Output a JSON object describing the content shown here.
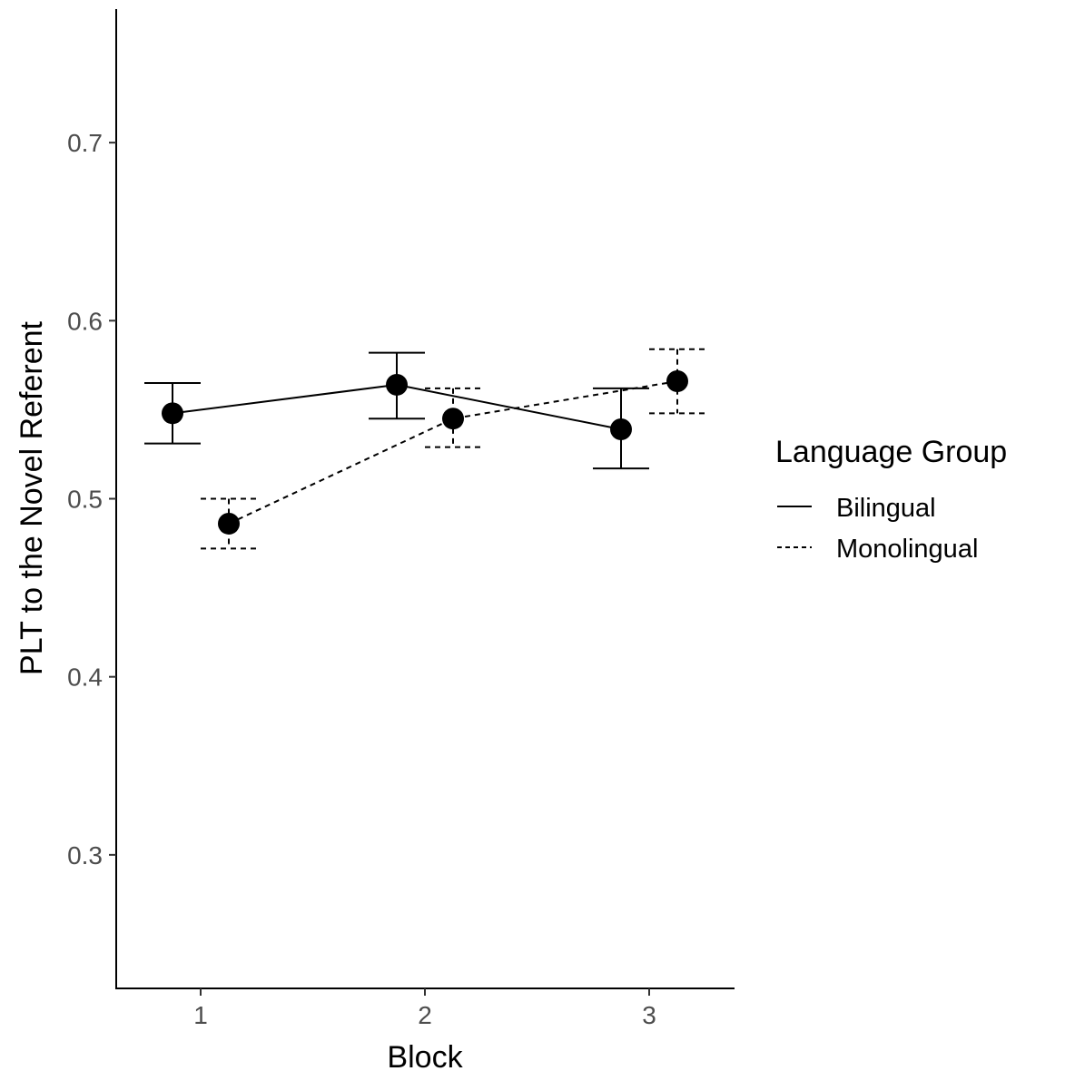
{
  "chart_data": {
    "type": "line",
    "xlabel": "Block",
    "ylabel": "PLT to the Novel Referent",
    "categories": [
      "1",
      "2",
      "3"
    ],
    "yticks": [
      "0.3",
      "0.4",
      "0.5",
      "0.6",
      "0.7"
    ],
    "ylim": [
      0.225,
      0.775
    ],
    "grid": false,
    "legend": {
      "title": "Language Group",
      "position": "right"
    },
    "series": [
      {
        "name": "Bilingual",
        "line_style": "solid",
        "values": [
          0.548,
          0.564,
          0.539
        ],
        "error_low": [
          0.531,
          0.545,
          0.517
        ],
        "error_high": [
          0.565,
          0.582,
          0.562
        ]
      },
      {
        "name": "Monolingual",
        "line_style": "dashed",
        "values": [
          0.486,
          0.545,
          0.566
        ],
        "error_low": [
          0.472,
          0.529,
          0.548
        ],
        "error_high": [
          0.5,
          0.562,
          0.584
        ]
      }
    ],
    "colors": {
      "marks": "#000000",
      "tick_text": "#4d4d4d"
    }
  }
}
